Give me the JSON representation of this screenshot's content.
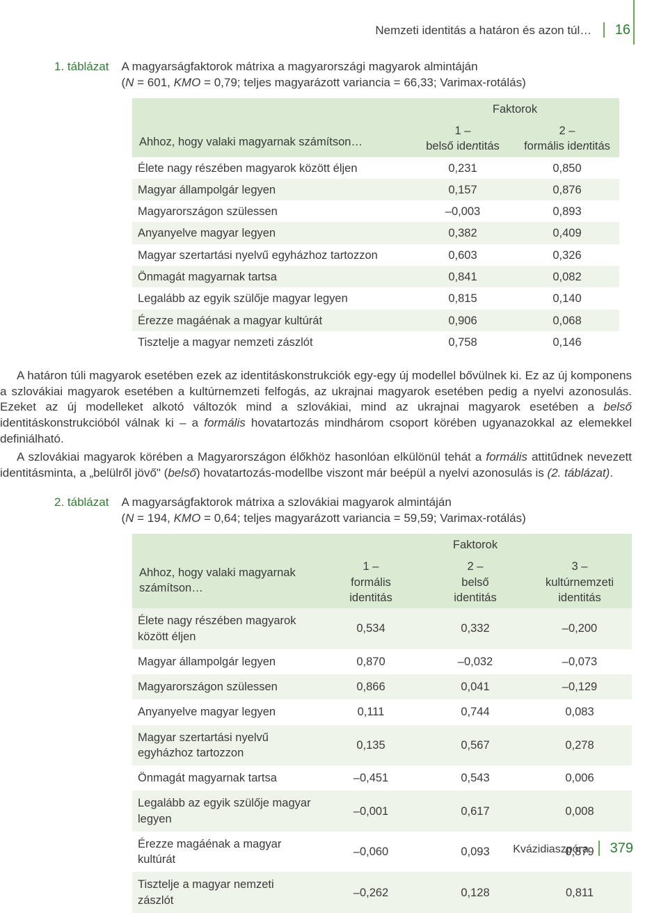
{
  "header": {
    "running_title": "Nemzeti identitás a határon és azon túl…",
    "page_top": "16"
  },
  "table1": {
    "label": "1. táblázat",
    "caption_l1": "A magyarságfaktorok mátrixa a magyarországi magyarok almintáján",
    "caption_l2_prefix": "(",
    "caption_l2_N": "N",
    "caption_l2_mid1": " = 601, ",
    "caption_l2_KMO": "KMO",
    "caption_l2_rest": " = 0,79; teljes magyarázott variancia = 66,33; Varimax-rotálás)",
    "stub_head": "Ahhoz, hogy valaki magyarnak számítson…",
    "factors_head": "Faktorok",
    "col1_l1": "1 –",
    "col1_l2a": "belső ide",
    "col1_l2b": "n",
    "col1_l2c": "titás",
    "col2_l1": "2 –",
    "col2_l2a": "formális ide",
    "col2_l2b": "n",
    "col2_l2c": "titás",
    "rows": [
      {
        "label": "Élete nagy részében magyarok között éljen",
        "c1": "0,231",
        "c2": "0,850"
      },
      {
        "label": "Magyar állampolgár legyen",
        "c1": "0,157",
        "c2": "0,876"
      },
      {
        "label": "Magyarországon szülessen",
        "c1": "–0,003",
        "c2": "0,893"
      },
      {
        "label": "Anyanyelve magyar legyen",
        "c1": "0,382",
        "c2": "0,409"
      },
      {
        "label": "Magyar szertartási nyelvű egyházhoz tartozzon",
        "c1": "0,603",
        "c2": "0,326"
      },
      {
        "label": "Önmagát magyarnak tartsa",
        "c1": "0,841",
        "c2": "0,082"
      },
      {
        "label": "Legalább az egyik szülője magyar legyen",
        "c1": "0,815",
        "c2": "0,140"
      },
      {
        "label": "Érezze magáénak a magyar kultúrát",
        "c1": "0,906",
        "c2": "0,068"
      },
      {
        "label": "Tisztelje a magyar nemzeti zászlót",
        "c1": "0,758",
        "c2": "0,146"
      }
    ]
  },
  "para1": "A határon túli magyarok esetében ezek az identitáskonstrukciók egy-egy új modellel bővülnek ki. Ez az új komponens a szlovákiai magyarok esetében a kultúrnemzeti felfogás, az ukrajnai magyarok esetében pedig a nyelvi azonosulás. Ezeket az új modelleket alkotó változók mind a szlovákiai, mind az ukrajnai magyarok esetében a ",
  "para1_i1": "belső",
  "para1b": " identitáskonstrukcióból válnak ki – a ",
  "para1_i2": "formális",
  "para1c": " hovatartozás mindhárom csoport körében ugyanazokkal az elemekkel definiálható.",
  "para2a": "A szlovákiai magyarok körében a Magyarországon élőkhöz hasonlóan elkülönül tehát a ",
  "para2_i1": "formális",
  "para2b": " attitűdnek nevezett identitásminta, a „belülről jövő\" (",
  "para2_i2": "belső",
  "para2c": ") hovatartozás-modellbe viszont már beépül a nyelvi azonosulás is ",
  "para2_i3": "(2. táblázat)",
  "para2d": ".",
  "table2": {
    "label": "2. táblázat",
    "caption_l1": "A magyarságfaktorok mátrixa a szlovákiai magyarok almintáján",
    "caption_l2_prefix": "(",
    "caption_l2_N": "N",
    "caption_l2_mid1": " = 194, ",
    "caption_l2_KMO": "KMO",
    "caption_l2_rest": " = 0,64; teljes magyarázott variancia = 59,59; Varimax-rotálás)",
    "stub_head": "Ahhoz, hogy valaki magyarnak számítson…",
    "factors_head": "Faktorok",
    "c1_l1": "1 –",
    "c1_l2": "formális",
    "c1_l3": "identitás",
    "c2_l1": "2 –",
    "c2_l2": "belső",
    "c2_l3": "identitás",
    "c3_l1": "3 –",
    "c3_l2": "kultúrnemzeti",
    "c3_l3": "identitás",
    "rows": [
      {
        "label": "Élete nagy részében magyarok között éljen",
        "c1": "0,534",
        "c2": "0,332",
        "c3": "–0,200"
      },
      {
        "label": "Magyar állampolgár legyen",
        "c1": "0,870",
        "c2": "–0,032",
        "c3": "–0,073"
      },
      {
        "label": "Magyarországon szülessen",
        "c1": "0,866",
        "c2": "0,041",
        "c3": "–0,129"
      },
      {
        "label": "Anyanyelve magyar legyen",
        "c1": "0,111",
        "c2": "0,744",
        "c3": "0,083"
      },
      {
        "label": "Magyar szertartási nyelvű egyházhoz tartozzon",
        "c1": "0,135",
        "c2": "0,567",
        "c3": "0,278"
      },
      {
        "label": "Önmagát magyarnak tartsa",
        "c1": "–0,451",
        "c2": "0,543",
        "c3": "0,006"
      },
      {
        "label": "Legalább az egyik szülője magyar legyen",
        "c1": "–0,001",
        "c2": "0,617",
        "c3": "0,008"
      },
      {
        "label": "Érezze magáénak a magyar kultúrát",
        "c1": "–0,060",
        "c2": "0,093",
        "c3": "0,879"
      },
      {
        "label": "Tisztelje a magyar nemzeti zászlót",
        "c1": "–0,262",
        "c2": "0,128",
        "c3": "0,811"
      }
    ]
  },
  "footer": {
    "section": "Kvázidiaszpóra",
    "page": "379"
  },
  "colors": {
    "accent": "#2e7d32",
    "rule": "#6aa84f",
    "band": "#dbead2",
    "stripe": "#eef4ea",
    "text": "#3a3a3a"
  }
}
